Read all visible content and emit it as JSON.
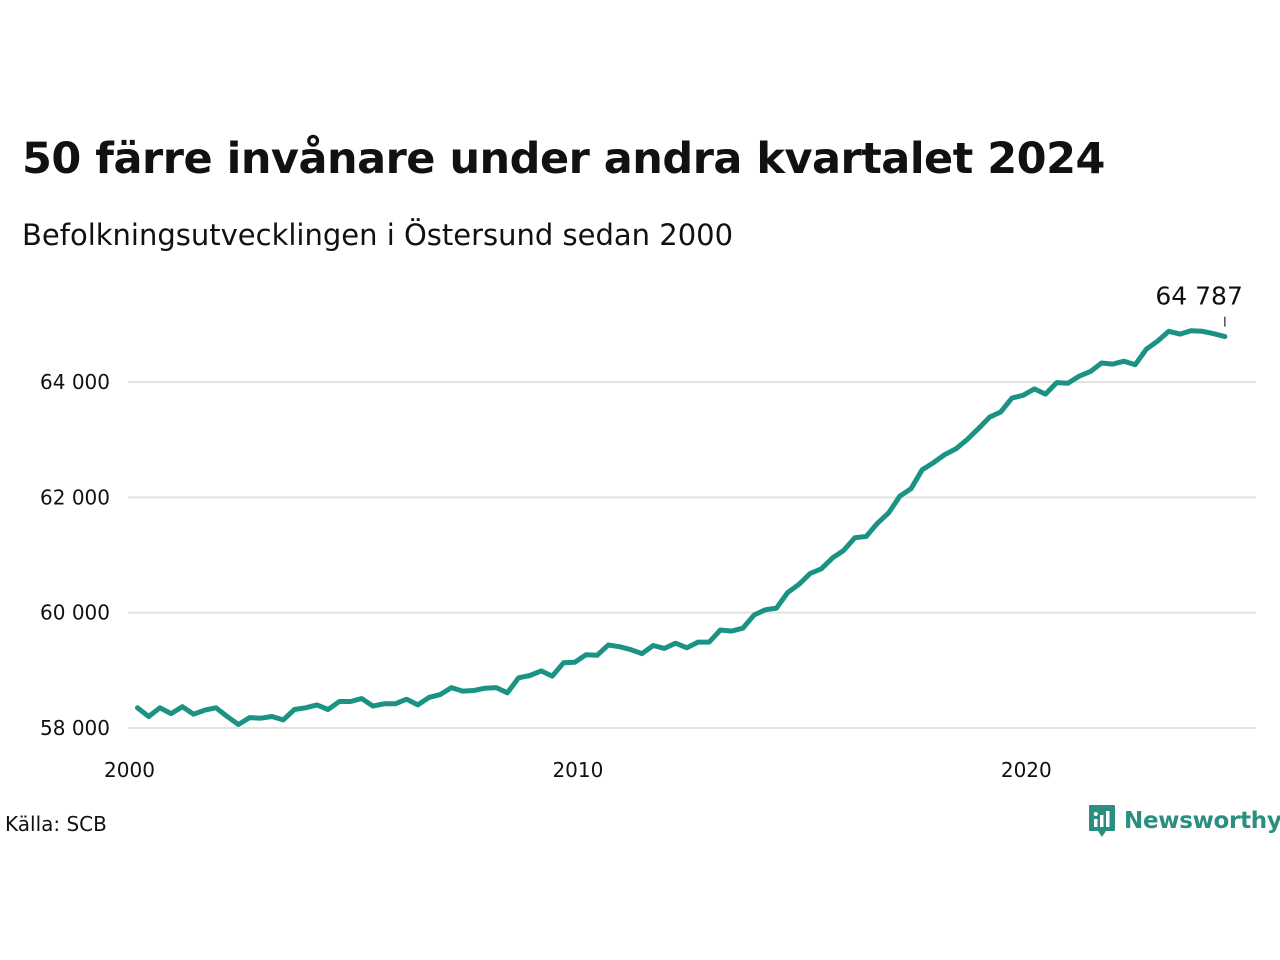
{
  "header": {
    "title": "50 färre invånare under andra kvartalet 2024",
    "subtitle": "Befolkningsutvecklingen i Östersund sedan 2000"
  },
  "footer": {
    "source": "Källa: SCB",
    "brand": "Newsworthy",
    "brand_icon": "chart-speech-bubble-icon"
  },
  "colors": {
    "line": "#1a9384",
    "grid": "#e2e2e2",
    "brand": "#2a8f80"
  },
  "chart_data": {
    "type": "line",
    "x_unit": "quarter",
    "x": [
      "2000Q1",
      "2000Q2",
      "2000Q3",
      "2000Q4",
      "2001Q1",
      "2001Q2",
      "2001Q3",
      "2001Q4",
      "2002Q1",
      "2002Q2",
      "2002Q3",
      "2002Q4",
      "2003Q1",
      "2003Q2",
      "2003Q3",
      "2003Q4",
      "2004Q1",
      "2004Q2",
      "2004Q3",
      "2004Q4",
      "2005Q1",
      "2005Q2",
      "2005Q3",
      "2005Q4",
      "2006Q1",
      "2006Q2",
      "2006Q3",
      "2006Q4",
      "2007Q1",
      "2007Q2",
      "2007Q3",
      "2007Q4",
      "2008Q1",
      "2008Q2",
      "2008Q3",
      "2008Q4",
      "2009Q1",
      "2009Q2",
      "2009Q3",
      "2009Q4",
      "2010Q1",
      "2010Q2",
      "2010Q3",
      "2010Q4",
      "2011Q1",
      "2011Q2",
      "2011Q3",
      "2011Q4",
      "2012Q1",
      "2012Q2",
      "2012Q3",
      "2012Q4",
      "2013Q1",
      "2013Q2",
      "2013Q3",
      "2013Q4",
      "2014Q1",
      "2014Q2",
      "2014Q3",
      "2014Q4",
      "2015Q1",
      "2015Q2",
      "2015Q3",
      "2015Q4",
      "2016Q1",
      "2016Q2",
      "2016Q3",
      "2016Q4",
      "2017Q1",
      "2017Q2",
      "2017Q3",
      "2017Q4",
      "2018Q1",
      "2018Q2",
      "2018Q3",
      "2018Q4",
      "2019Q1",
      "2019Q2",
      "2019Q3",
      "2019Q4",
      "2020Q1",
      "2020Q2",
      "2020Q3",
      "2020Q4",
      "2021Q1",
      "2021Q2",
      "2021Q3",
      "2021Q4",
      "2022Q1",
      "2022Q2",
      "2022Q3",
      "2022Q4",
      "2023Q1",
      "2023Q2",
      "2023Q3",
      "2023Q4",
      "2024Q1",
      "2024Q2"
    ],
    "series": [
      {
        "values": [
          58350,
          58200,
          58350,
          58250,
          58370,
          58240,
          58310,
          58350,
          58200,
          58060,
          58180,
          58170,
          58200,
          58140,
          58320,
          58350,
          58400,
          58320,
          58460,
          58460,
          58510,
          58380,
          58420,
          58420,
          58500,
          58400,
          58530,
          58580,
          58700,
          58640,
          58650,
          58690,
          58700,
          58610,
          58870,
          58910,
          58990,
          58900,
          59130,
          59140,
          59270,
          59260,
          59440,
          59410,
          59360,
          59290,
          59430,
          59380,
          59470,
          59390,
          59490,
          59490,
          59700,
          59680,
          59730,
          59960,
          60050,
          60080,
          60350,
          60490,
          60680,
          60760,
          60950,
          61080,
          61300,
          61320,
          61550,
          61730,
          62020,
          62150,
          62480,
          62600,
          62740,
          62840,
          63000,
          63190,
          63390,
          63480,
          63720,
          63770,
          63880,
          63790,
          63990,
          63980,
          64100,
          64180,
          64330,
          64310,
          64360,
          64300,
          64570,
          64710,
          64880,
          64830,
          64890,
          64880,
          64837,
          64787
        ],
        "end_label": "64 787"
      }
    ],
    "xticks": [
      {
        "value": 2000,
        "label": "2000"
      },
      {
        "value": 2010,
        "label": "2010"
      },
      {
        "value": 2020,
        "label": "2020"
      }
    ],
    "yticks": [
      {
        "value": 58000,
        "label": "58 000"
      },
      {
        "value": 60000,
        "label": "60 000"
      },
      {
        "value": 62000,
        "label": "62 000"
      },
      {
        "value": 64000,
        "label": "64 000"
      }
    ],
    "xlim": [
      2000,
      2025
    ],
    "ylim": [
      58000,
      65400
    ],
    "grid": "horizontal",
    "legend": "none"
  }
}
